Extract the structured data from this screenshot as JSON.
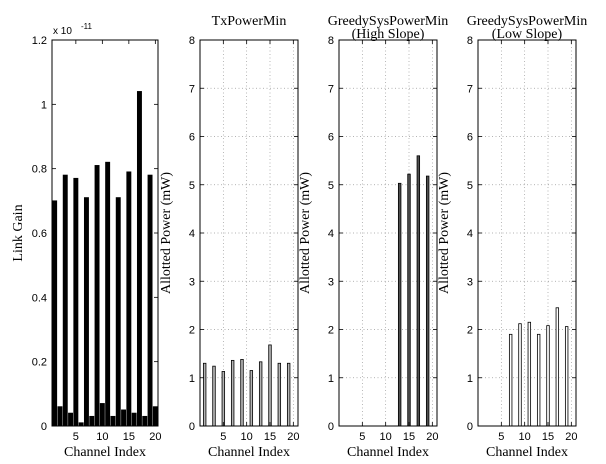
{
  "chart_data": [
    {
      "type": "bar",
      "title": [],
      "xlabel": "Channel Index",
      "ylabel": "Link Gain",
      "y_exponent": "x 10",
      "y_exponent_power": "-11",
      "xlim": [
        0.5,
        20.5
      ],
      "ylim": [
        0,
        1.2
      ],
      "xticks": [
        5,
        10,
        15,
        20
      ],
      "yticks": [
        0,
        0.2,
        0.4,
        0.6,
        0.8,
        1,
        1.2
      ],
      "ytick_labels": [
        "0",
        "0.2",
        "0.4",
        "0.6",
        "0.8",
        "1",
        "1.2"
      ],
      "grid": false,
      "bar_color": "#000000",
      "x": [
        1,
        2,
        3,
        4,
        5,
        6,
        7,
        8,
        9,
        10,
        11,
        12,
        13,
        14,
        15,
        16,
        17,
        18,
        19,
        20
      ],
      "values": [
        0.7,
        0.06,
        0.78,
        0.04,
        0.77,
        0.01,
        0.71,
        0.03,
        0.81,
        0.07,
        0.82,
        0.03,
        0.71,
        0.05,
        0.79,
        0.04,
        1.04,
        0.03,
        0.78,
        0.06
      ]
    },
    {
      "type": "bar",
      "title": [
        "TxPowerMin"
      ],
      "xlabel": "Channel Index",
      "ylabel": "Allotted Power (mW)",
      "xlim": [
        0,
        21
      ],
      "ylim": [
        0,
        8
      ],
      "xticks": [
        5,
        10,
        15,
        20
      ],
      "yticks": [
        0,
        1,
        2,
        3,
        4,
        5,
        6,
        7,
        8
      ],
      "ytick_labels": [
        "0",
        "1",
        "2",
        "3",
        "4",
        "5",
        "6",
        "7",
        "8"
      ],
      "grid": true,
      "bar_color": "#b4b4b4",
      "x": [
        1,
        3,
        5,
        7,
        9,
        11,
        13,
        15,
        17,
        19
      ],
      "values": [
        1.3,
        1.24,
        1.13,
        1.36,
        1.38,
        1.15,
        1.33,
        1.68,
        1.3,
        1.3
      ]
    },
    {
      "type": "bar",
      "title": [
        "GreedySysPowerMin",
        "(High Slope)"
      ],
      "xlabel": "Channel Index",
      "ylabel": "Allotted Power (mW)",
      "xlim": [
        0,
        21
      ],
      "ylim": [
        0,
        8
      ],
      "xticks": [
        5,
        10,
        15,
        20
      ],
      "yticks": [
        0,
        1,
        2,
        3,
        4,
        5,
        6,
        7,
        8
      ],
      "ytick_labels": [
        "0",
        "1",
        "2",
        "3",
        "4",
        "5",
        "6",
        "7",
        "8"
      ],
      "grid": true,
      "bar_color": "#505050",
      "x": [
        1,
        3,
        5,
        7,
        9,
        11,
        13,
        15,
        17,
        19
      ],
      "values": [
        0,
        0,
        0,
        0,
        0,
        0,
        5.03,
        5.22,
        5.6,
        5.18
      ]
    },
    {
      "type": "bar",
      "title": [
        "GreedySysPowerMin",
        "(Low Slope)"
      ],
      "xlabel": "Channel Index",
      "ylabel": "Allotted Power (mW)",
      "xlim": [
        0,
        21
      ],
      "ylim": [
        0,
        8
      ],
      "xticks": [
        5,
        10,
        15,
        20
      ],
      "yticks": [
        0,
        1,
        2,
        3,
        4,
        5,
        6,
        7,
        8
      ],
      "ytick_labels": [
        "0",
        "1",
        "2",
        "3",
        "4",
        "5",
        "6",
        "7",
        "8"
      ],
      "grid": true,
      "bar_color": "#ffffff",
      "x": [
        1,
        3,
        5,
        7,
        9,
        11,
        13,
        15,
        17,
        19
      ],
      "values": [
        0,
        0,
        0,
        1.9,
        2.12,
        2.15,
        1.9,
        2.08,
        2.45,
        2.06
      ]
    }
  ]
}
